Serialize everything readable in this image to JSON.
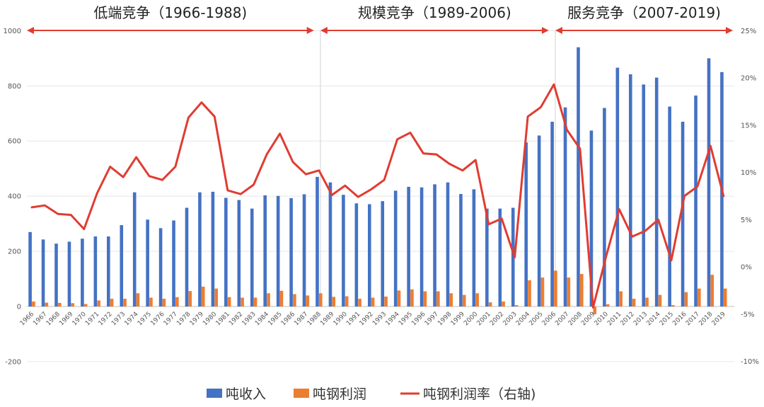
{
  "periods": [
    {
      "label": "低端竞争（1966-1988)",
      "start": 1966,
      "end": 1988
    },
    {
      "label": "规模竞争（1989-2006)",
      "start": 1988,
      "end": 2006
    },
    {
      "label": "服务竞争（2007-2019)",
      "start": 2006,
      "end": 2019
    }
  ],
  "legend": [
    {
      "label": "吨收入",
      "color": "#4472C4",
      "kind": "bar"
    },
    {
      "label": "吨钢利润",
      "color": "#ED7D31",
      "kind": "bar"
    },
    {
      "label": "吨钢利润率（右轴)",
      "color": "#E03C31",
      "kind": "line"
    }
  ],
  "chart_data": {
    "type": "bar",
    "categories": [
      "1966",
      "1967",
      "1968",
      "1969",
      "1970",
      "1971",
      "1972",
      "1973",
      "1974",
      "1975",
      "1976",
      "1977",
      "1978",
      "1979",
      "1980",
      "1981",
      "1982",
      "1983",
      "1984",
      "1985",
      "1986",
      "1987",
      "1988",
      "1989",
      "1990",
      "1991",
      "1992",
      "1993",
      "1994",
      "1995",
      "1996",
      "1997",
      "1998",
      "1999",
      "2000",
      "2001",
      "2002",
      "2003",
      "2004",
      "2005",
      "2006",
      "2007",
      "2008",
      "2009",
      "2010",
      "2011",
      "2012",
      "2013",
      "2014",
      "2015",
      "2016",
      "2017",
      "2018",
      "2019"
    ],
    "series": [
      {
        "name": "吨收入",
        "type": "bar",
        "axis": "left",
        "color": "#4472C4",
        "values": [
          270,
          243,
          228,
          235,
          246,
          254,
          254,
          295,
          414,
          315,
          284,
          312,
          358,
          414,
          416,
          394,
          386,
          355,
          403,
          401,
          393,
          407,
          470,
          450,
          405,
          374,
          371,
          382,
          420,
          434,
          432,
          443,
          450,
          408,
          425,
          355,
          355,
          358,
          595,
          620,
          670,
          722,
          940,
          638,
          720,
          866,
          842,
          805,
          830,
          725,
          670,
          765,
          900,
          850
        ]
      },
      {
        "name": "吨钢利润",
        "type": "bar",
        "axis": "left",
        "color": "#ED7D31",
        "values": [
          18,
          14,
          13,
          12,
          9,
          22,
          28,
          28,
          48,
          32,
          28,
          34,
          56,
          72,
          65,
          34,
          32,
          32,
          48,
          57,
          45,
          40,
          48,
          35,
          37,
          28,
          32,
          36,
          58,
          62,
          55,
          55,
          48,
          42,
          48,
          15,
          18,
          5,
          95,
          105,
          130,
          105,
          118,
          -28,
          8,
          55,
          28,
          32,
          42,
          5,
          52,
          65,
          115,
          65
        ]
      },
      {
        "name": "吨钢利润率（右轴)",
        "type": "line",
        "axis": "right",
        "color": "#E03C31",
        "values": [
          6.3,
          6.5,
          5.6,
          5.5,
          4.0,
          7.8,
          10.6,
          9.5,
          11.6,
          9.6,
          9.2,
          10.6,
          15.8,
          17.4,
          15.9,
          8.1,
          7.7,
          8.7,
          11.9,
          14.1,
          11.1,
          9.8,
          10.2,
          7.6,
          8.6,
          7.4,
          8.2,
          9.2,
          13.5,
          14.2,
          12.0,
          11.9,
          10.9,
          10.2,
          11.3,
          4.5,
          5.1,
          1.0,
          15.9,
          16.9,
          19.3,
          14.5,
          12.5,
          -4.3,
          1.1,
          6.1,
          3.2,
          3.8,
          5.0,
          0.7,
          7.5,
          8.5,
          12.8,
          7.5
        ]
      }
    ],
    "y_left": {
      "min": -200,
      "max": 1000,
      "ticks": [
        "-200",
        "0",
        "200",
        "400",
        "600",
        "800",
        "1000"
      ]
    },
    "y_right": {
      "min": -10,
      "max": 25,
      "ticks": [
        "-10%",
        "-5%",
        "0%",
        "5%",
        "10%",
        "15%",
        "20%",
        "25%"
      ]
    },
    "grid": true,
    "legend_position": "bottom"
  }
}
